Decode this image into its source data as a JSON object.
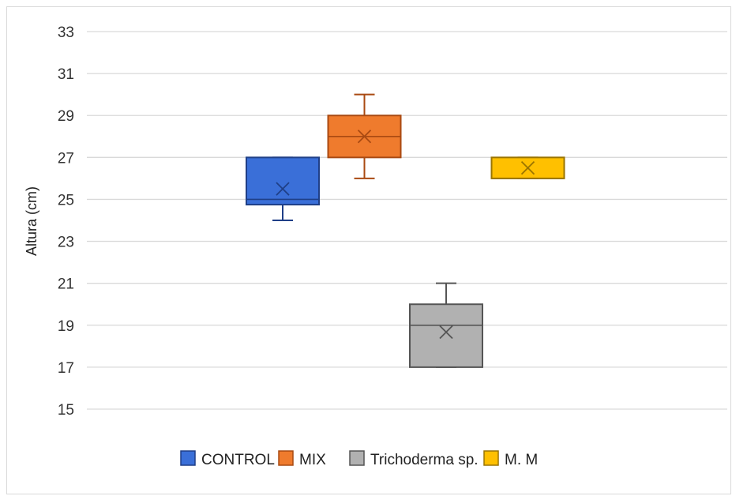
{
  "chart_data": {
    "type": "box",
    "title": "",
    "xlabel": "",
    "ylabel": "Altura (cm)",
    "ylim": [
      15,
      33
    ],
    "yticks": [
      15,
      17,
      19,
      21,
      23,
      25,
      27,
      29,
      31,
      33
    ],
    "grid": true,
    "legend_position": "bottom",
    "series": [
      {
        "name": "CONTROL",
        "color": "#3a6fd8",
        "edge": "#1f3f87",
        "whisker_low": 24,
        "q1": 24.75,
        "median": 25,
        "q3": 27,
        "whisker_high": 27,
        "mean": 25.5
      },
      {
        "name": "MIX",
        "color": "#ef7b2d",
        "edge": "#a94a12",
        "whisker_low": 26,
        "q1": 27,
        "median": 28,
        "q3": 29,
        "whisker_high": 30,
        "mean": 28
      },
      {
        "name": "Trichoderma sp.",
        "color": "#b1b1b1",
        "edge": "#555555",
        "whisker_low": 17,
        "q1": 17,
        "median": 19,
        "q3": 20,
        "whisker_high": 21,
        "mean": 18.67
      },
      {
        "name": "M. M",
        "color": "#ffc000",
        "edge": "#9a7400",
        "whisker_low": 26,
        "q1": 26,
        "median": 26,
        "q3": 27,
        "whisker_high": 27,
        "mean": 26.5
      }
    ]
  }
}
